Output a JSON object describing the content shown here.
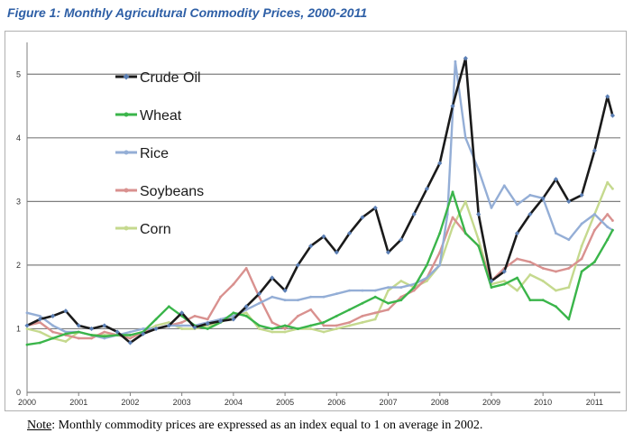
{
  "figure": {
    "title": "Figure 1: Monthly Agricultural Commodity Prices, 2000-2011"
  },
  "note": {
    "label": "Note",
    "text": ": Monthly commodity prices are expressed as an index equal to 1 on average in 2002."
  },
  "chart_data": {
    "type": "line",
    "title": "",
    "xlabel": "",
    "ylabel": "",
    "xlim": [
      2000,
      2011.5
    ],
    "ylim": [
      0,
      5.5
    ],
    "x_ticks": [
      2000,
      2001,
      2002,
      2003,
      2004,
      2005,
      2006,
      2007,
      2008,
      2009,
      2010,
      2011
    ],
    "x_tick_labels": [
      "2000",
      "2001",
      "2002",
      "2003",
      "2004",
      "2005",
      "2006",
      "2007",
      "2008",
      "2009",
      "2010",
      "2011"
    ],
    "y_ticks": [
      0,
      1,
      2,
      3,
      4,
      5
    ],
    "y_tick_labels": [
      "0",
      "1",
      "2",
      "3",
      "4",
      "5"
    ],
    "grid": "horizontal",
    "legend": "top-left",
    "series": [
      {
        "name": "Crude Oil",
        "color": "#1a1a1a",
        "marker_color": "#5b7fb5",
        "marker": "diamond",
        "x": [
          2000.0,
          2000.25,
          2000.5,
          2000.75,
          2001.0,
          2001.25,
          2001.5,
          2001.75,
          2002.0,
          2002.25,
          2002.5,
          2002.75,
          2003.0,
          2003.25,
          2003.5,
          2003.75,
          2004.0,
          2004.25,
          2004.5,
          2004.75,
          2005.0,
          2005.25,
          2005.5,
          2005.75,
          2006.0,
          2006.25,
          2006.5,
          2006.75,
          2007.0,
          2007.25,
          2007.5,
          2007.75,
          2008.0,
          2008.25,
          2008.5,
          2008.75,
          2009.0,
          2009.25,
          2009.5,
          2009.75,
          2010.0,
          2010.25,
          2010.5,
          2010.75,
          2011.0,
          2011.25,
          2011.35
        ],
        "values": [
          1.05,
          1.15,
          1.2,
          1.28,
          1.05,
          1.0,
          1.05,
          0.95,
          0.78,
          0.92,
          1.0,
          1.05,
          1.25,
          1.02,
          1.08,
          1.12,
          1.15,
          1.35,
          1.55,
          1.8,
          1.6,
          2.0,
          2.3,
          2.45,
          2.2,
          2.5,
          2.75,
          2.9,
          2.2,
          2.4,
          2.8,
          3.2,
          3.6,
          4.5,
          5.25,
          2.8,
          1.75,
          1.9,
          2.5,
          2.8,
          3.05,
          3.35,
          3.0,
          3.1,
          3.8,
          4.65,
          4.35
        ]
      },
      {
        "name": "Wheat",
        "color": "#3ab54a",
        "x": [
          2000.0,
          2000.25,
          2000.5,
          2000.75,
          2001.0,
          2001.25,
          2001.5,
          2001.75,
          2002.0,
          2002.25,
          2002.5,
          2002.75,
          2003.0,
          2003.25,
          2003.5,
          2003.75,
          2004.0,
          2004.25,
          2004.5,
          2004.75,
          2005.0,
          2005.25,
          2005.5,
          2005.75,
          2006.0,
          2006.25,
          2006.5,
          2006.75,
          2007.0,
          2007.25,
          2007.5,
          2007.75,
          2008.0,
          2008.25,
          2008.5,
          2008.75,
          2009.0,
          2009.25,
          2009.5,
          2009.75,
          2010.0,
          2010.25,
          2010.5,
          2010.75,
          2011.0,
          2011.25,
          2011.35
        ],
        "values": [
          0.75,
          0.78,
          0.85,
          0.92,
          0.95,
          0.9,
          0.88,
          0.9,
          0.9,
          0.95,
          1.15,
          1.35,
          1.2,
          1.05,
          1.0,
          1.1,
          1.25,
          1.2,
          1.05,
          1.0,
          1.05,
          1.0,
          1.05,
          1.1,
          1.2,
          1.3,
          1.4,
          1.5,
          1.4,
          1.45,
          1.65,
          2.0,
          2.5,
          3.15,
          2.5,
          2.3,
          1.65,
          1.7,
          1.8,
          1.45,
          1.45,
          1.35,
          1.15,
          1.9,
          2.05,
          2.4,
          2.55
        ]
      },
      {
        "name": "Rice",
        "color": "#94aed6",
        "x": [
          2000.0,
          2000.25,
          2000.5,
          2000.75,
          2001.0,
          2001.25,
          2001.5,
          2001.75,
          2002.0,
          2002.25,
          2002.5,
          2002.75,
          2003.0,
          2003.25,
          2003.5,
          2003.75,
          2004.0,
          2004.25,
          2004.5,
          2004.75,
          2005.0,
          2005.25,
          2005.5,
          2005.75,
          2006.0,
          2006.25,
          2006.5,
          2006.75,
          2007.0,
          2007.25,
          2007.5,
          2007.75,
          2008.0,
          2008.15,
          2008.3,
          2008.5,
          2008.75,
          2009.0,
          2009.25,
          2009.5,
          2009.75,
          2010.0,
          2010.25,
          2010.5,
          2010.75,
          2011.0,
          2011.25,
          2011.35
        ],
        "values": [
          1.25,
          1.2,
          1.05,
          0.95,
          0.95,
          0.9,
          0.85,
          0.9,
          0.95,
          1.0,
          1.0,
          1.05,
          1.05,
          1.05,
          1.1,
          1.15,
          1.2,
          1.3,
          1.4,
          1.5,
          1.45,
          1.45,
          1.5,
          1.5,
          1.55,
          1.6,
          1.6,
          1.6,
          1.65,
          1.65,
          1.7,
          1.8,
          2.0,
          2.8,
          5.2,
          4.0,
          3.5,
          2.9,
          3.25,
          2.95,
          3.1,
          3.05,
          2.5,
          2.4,
          2.65,
          2.8,
          2.6,
          2.55
        ]
      },
      {
        "name": "Soybeans",
        "color": "#d9918f",
        "x": [
          2000.0,
          2000.25,
          2000.5,
          2000.75,
          2001.0,
          2001.25,
          2001.5,
          2001.75,
          2002.0,
          2002.25,
          2002.5,
          2002.75,
          2003.0,
          2003.25,
          2003.5,
          2003.75,
          2004.0,
          2004.25,
          2004.5,
          2004.75,
          2005.0,
          2005.25,
          2005.5,
          2005.75,
          2006.0,
          2006.25,
          2006.5,
          2006.75,
          2007.0,
          2007.25,
          2007.5,
          2007.75,
          2008.0,
          2008.25,
          2008.5,
          2008.75,
          2009.0,
          2009.25,
          2009.5,
          2009.75,
          2010.0,
          2010.25,
          2010.5,
          2010.75,
          2011.0,
          2011.25,
          2011.35
        ],
        "values": [
          1.05,
          1.1,
          0.95,
          0.9,
          0.85,
          0.85,
          0.95,
          0.9,
          0.85,
          0.95,
          1.0,
          1.05,
          1.1,
          1.2,
          1.15,
          1.5,
          1.7,
          1.95,
          1.5,
          1.1,
          1.0,
          1.2,
          1.3,
          1.05,
          1.05,
          1.1,
          1.2,
          1.25,
          1.3,
          1.5,
          1.6,
          1.8,
          2.2,
          2.75,
          2.5,
          2.3,
          1.75,
          1.95,
          2.1,
          2.05,
          1.95,
          1.9,
          1.95,
          2.1,
          2.55,
          2.8,
          2.7
        ]
      },
      {
        "name": "Corn",
        "color": "#c5d98e",
        "x": [
          2000.0,
          2000.25,
          2000.5,
          2000.75,
          2001.0,
          2001.25,
          2001.5,
          2001.75,
          2002.0,
          2002.25,
          2002.5,
          2002.75,
          2003.0,
          2003.25,
          2003.5,
          2003.75,
          2004.0,
          2004.25,
          2004.5,
          2004.75,
          2005.0,
          2005.25,
          2005.5,
          2005.75,
          2006.0,
          2006.25,
          2006.5,
          2006.75,
          2007.0,
          2007.25,
          2007.5,
          2007.75,
          2008.0,
          2008.25,
          2008.5,
          2008.75,
          2009.0,
          2009.25,
          2009.5,
          2009.75,
          2010.0,
          2010.25,
          2010.5,
          2010.75,
          2011.0,
          2011.25,
          2011.35
        ],
        "values": [
          1.0,
          0.95,
          0.85,
          0.8,
          0.95,
          0.9,
          0.9,
          0.9,
          0.9,
          0.95,
          1.05,
          1.1,
          1.0,
          1.0,
          1.05,
          1.1,
          1.2,
          1.25,
          1.0,
          0.95,
          0.95,
          1.0,
          1.0,
          0.95,
          1.0,
          1.05,
          1.1,
          1.15,
          1.6,
          1.75,
          1.65,
          1.75,
          2.0,
          2.6,
          3.0,
          2.4,
          1.7,
          1.75,
          1.6,
          1.85,
          1.75,
          1.6,
          1.65,
          2.3,
          2.8,
          3.3,
          3.2
        ]
      }
    ]
  }
}
